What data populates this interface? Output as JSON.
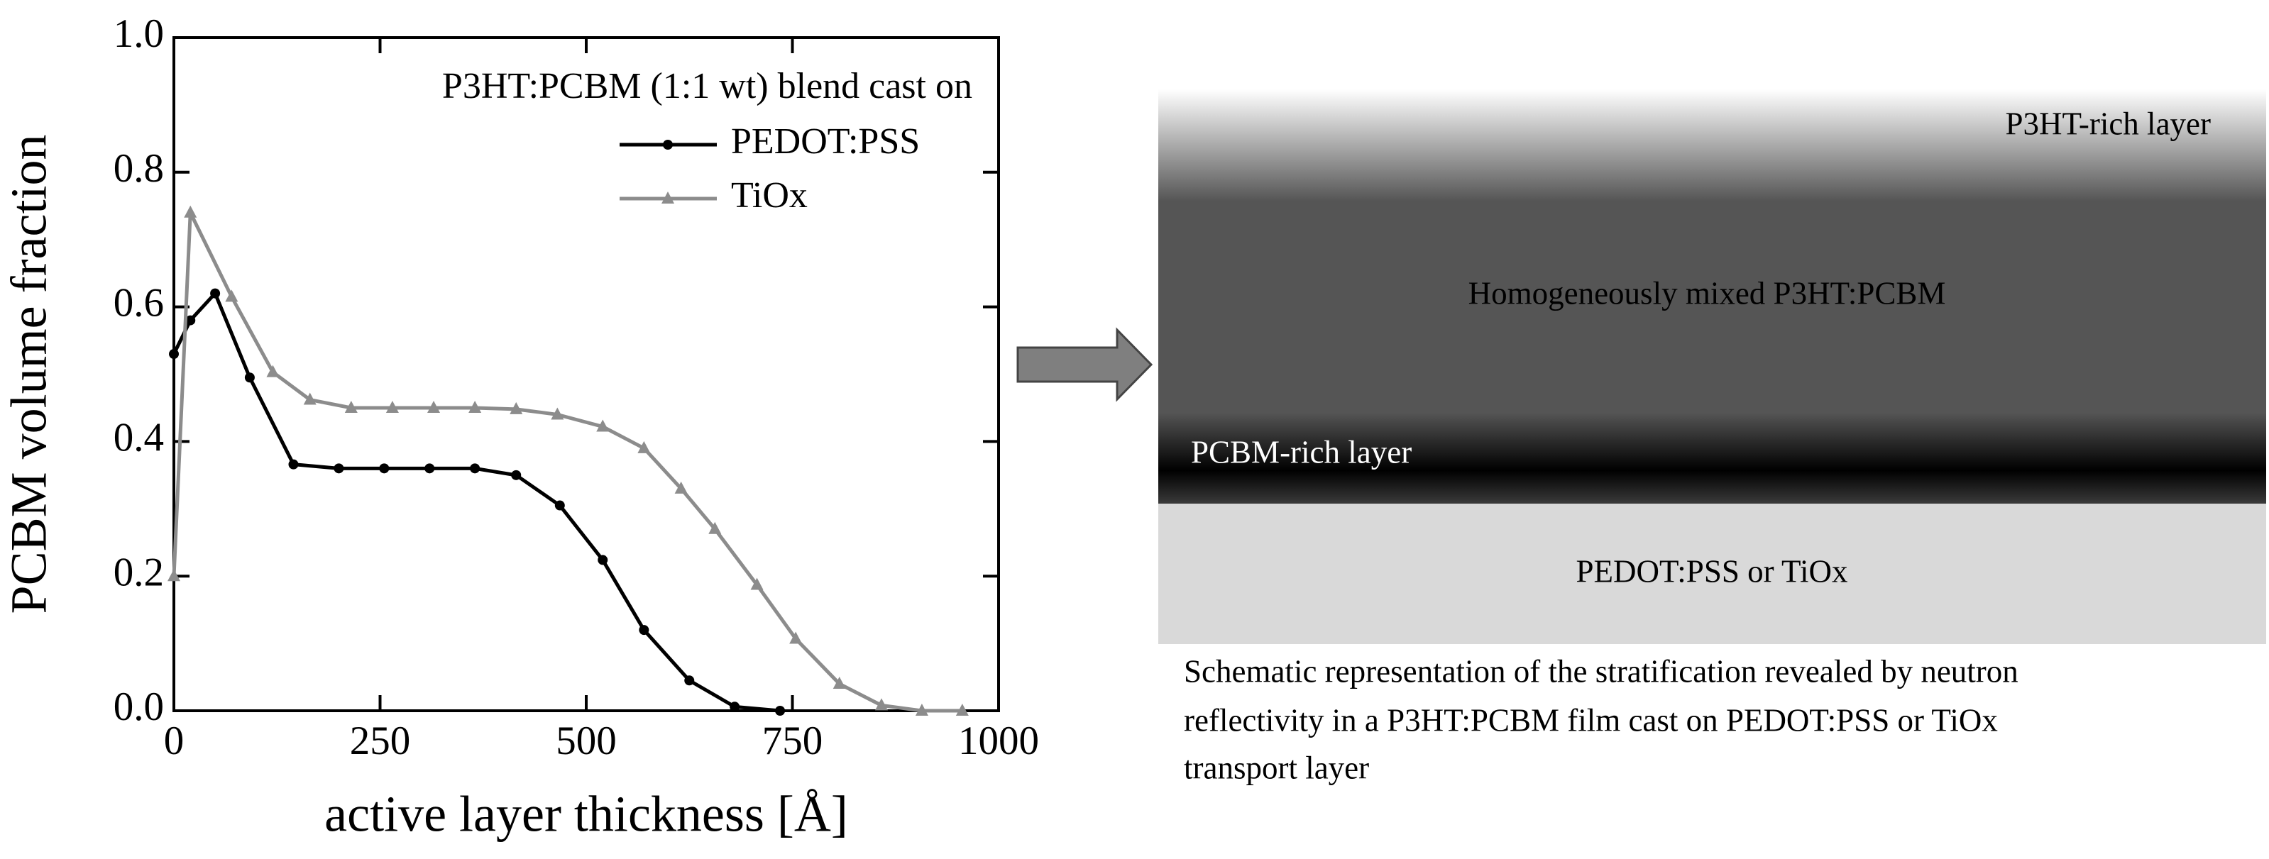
{
  "chart_data": {
    "type": "line",
    "xlabel": "active layer thickness [Å]",
    "ylabel": "PCBM volume fraction",
    "legend_title": "P3HT:PCBM (1:1 wt) blend cast on",
    "legend": "upper right",
    "xlim": [
      0,
      1000
    ],
    "xticks": [
      0,
      250,
      500,
      750,
      1000
    ],
    "ylim": [
      0,
      1
    ],
    "yticks": [
      {
        "value": 0,
        "label": "0.0"
      },
      0.2,
      0.4,
      0.6,
      0.8,
      {
        "value": 1,
        "label": "1.0"
      }
    ],
    "series": [
      {
        "name": "PEDOT:PSS",
        "color": "#000000",
        "marker": "circle",
        "x": [
          0,
          20,
          50,
          92,
          145,
          200,
          255,
          310,
          365,
          415,
          468,
          520,
          570,
          625,
          680,
          735
        ],
        "values": [
          0.53,
          0.58,
          0.62,
          0.495,
          0.366,
          0.36,
          0.36,
          0.36,
          0.36,
          0.35,
          0.305,
          0.224,
          0.12,
          0.045,
          0.006,
          0.0
        ]
      },
      {
        "name": "TiOx",
        "color": "#8c8c8c",
        "marker": "triangle",
        "x": [
          0,
          20,
          70,
          120,
          165,
          215,
          265,
          315,
          365,
          415,
          465,
          520,
          570,
          615,
          656,
          707,
          754,
          807,
          858,
          907,
          956
        ],
        "values": [
          0.2,
          0.74,
          0.615,
          0.503,
          0.462,
          0.45,
          0.45,
          0.45,
          0.45,
          0.448,
          0.44,
          0.422,
          0.39,
          0.33,
          0.27,
          0.187,
          0.107,
          0.04,
          0.008,
          0.0,
          0.0
        ]
      }
    ]
  },
  "schematic": {
    "layers": [
      "P3HT-rich layer",
      "Homogeneously mixed P3HT:PCBM",
      "PCBM-rich layer",
      "PEDOT:PSS or TiOx"
    ],
    "caption_lines": [
      "Schematic representation of the stratification revealed by neutron",
      "reflectivity in a P3HT:PCBM film cast on PEDOT:PSS or TiOx",
      "transport layer"
    ]
  }
}
